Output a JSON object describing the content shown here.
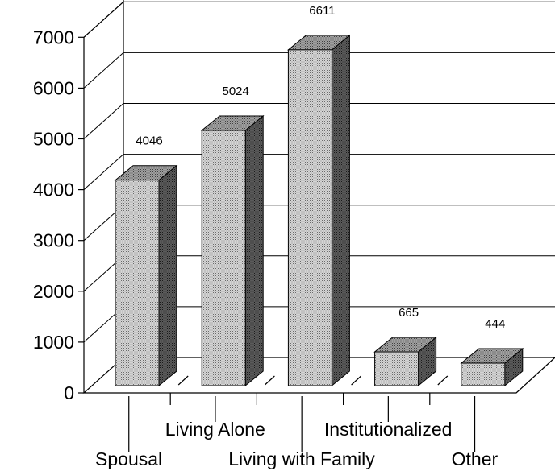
{
  "chart_data": {
    "type": "bar",
    "style": "3d",
    "categories": [
      "Spousal",
      "Living Alone",
      "Living with Family",
      "Institutionalized",
      "Other"
    ],
    "values": [
      4046,
      5024,
      6611,
      665,
      444
    ],
    "data_labels": [
      "4046",
      "5024",
      "6611",
      "665",
      "444"
    ],
    "title": "",
    "xlabel": "",
    "ylabel": "",
    "ylim": [
      0,
      7000
    ],
    "yticks": [
      "0",
      "1000",
      "2000",
      "3000",
      "4000",
      "5000",
      "6000",
      "7000"
    ],
    "grid": true,
    "legend": "none",
    "colors": {
      "bar_front": "#c8c8c8",
      "bar_top": "#8a8a8a",
      "bar_side": "#4a4a4a"
    }
  }
}
